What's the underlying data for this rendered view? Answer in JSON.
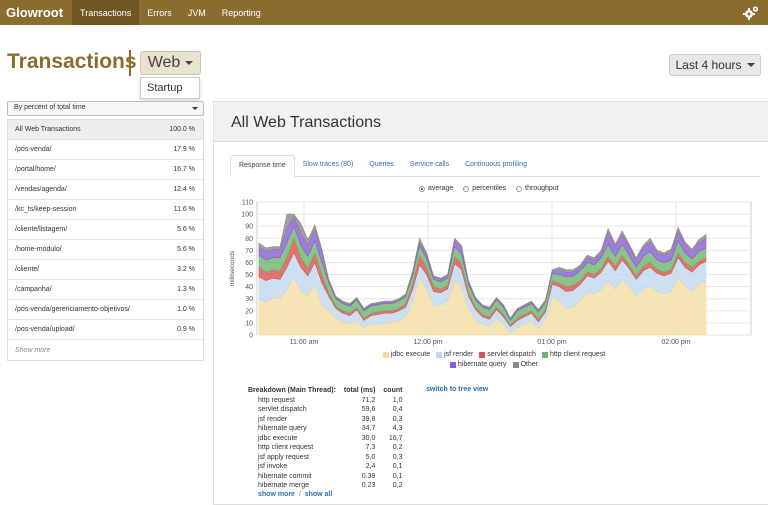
{
  "nav": {
    "brand": "Glowroot",
    "tabs": [
      "Transactions",
      "Errors",
      "JVM",
      "Reporting"
    ],
    "active_tab": "Transactions",
    "gear_icon": "gear-icon"
  },
  "header": {
    "title": "Transactions",
    "transaction_type": "Web",
    "type_menu_items": [
      "Startup"
    ],
    "time_range": "Last 4 hours"
  },
  "sidebar": {
    "sort_select": "By percent of total time",
    "rows": [
      {
        "name": "All Web Transactions",
        "value": "100.0 %"
      },
      {
        "name": "/pos-venda/",
        "value": "17.9 %"
      },
      {
        "name": "/portal/home/",
        "value": "16.7 %"
      },
      {
        "name": "/vendas/agenda/",
        "value": "12.4 %"
      },
      {
        "name": "/kc_ts/keep-session",
        "value": "11.6 %"
      },
      {
        "name": "/cliente/listagem/",
        "value": "5.6 %"
      },
      {
        "name": "/home-modulo/",
        "value": "5.6 %"
      },
      {
        "name": "/cliente/",
        "value": "3.2 %"
      },
      {
        "name": "/campanha/",
        "value": "1.3 %"
      },
      {
        "name": "/pos-venda/gerenciamento-objetivos/",
        "value": "1.0 %"
      },
      {
        "name": "/pos-venda/upload/",
        "value": "0.9 %"
      }
    ],
    "show_more": "Show more"
  },
  "main": {
    "title": "All Web Transactions",
    "tabs": [
      "Response time",
      "Slow traces (80)",
      "Queries",
      "Service calls",
      "Continuous profiling"
    ],
    "active_tab": "Response time",
    "view_options": [
      "average",
      "percentiles",
      "throughput"
    ],
    "selected_view": "average",
    "breakdown": {
      "headers": [
        "Breakdown (Main Thread):",
        "total (ms)",
        "count"
      ],
      "rows": [
        [
          "http request",
          "71,2",
          "1,0"
        ],
        [
          "servlet dispatch",
          "59,6",
          "0,4"
        ],
        [
          "jsf render",
          "39,8",
          "0,3"
        ],
        [
          "hibernate query",
          "34,7",
          "4,3"
        ],
        [
          "jdbc execute",
          "30,0",
          "16,7"
        ],
        [
          "http client request",
          "7,3",
          "0,2"
        ],
        [
          "jsf apply request",
          "5,0",
          "0,3"
        ],
        [
          "jsf invoke",
          "2,4",
          "0,1"
        ],
        [
          "hibernate commit",
          "0.39",
          "0,1"
        ],
        [
          "hibernate merge",
          "0.23",
          "0,2"
        ]
      ],
      "show_more": "show more",
      "separator": "/",
      "show_all": "show all",
      "tree_view": "switch to tree view"
    }
  },
  "chart_data": {
    "type": "area",
    "stacked": true,
    "ylabel": "milliseconds",
    "ylim": [
      0,
      110
    ],
    "yticks": [
      0,
      10,
      20,
      30,
      40,
      50,
      60,
      70,
      80,
      90,
      100,
      110
    ],
    "xtick_labels": [
      "11:00 am",
      "12:00 pm",
      "01:00 pm",
      "02:00 pm"
    ],
    "grid": true,
    "legend_position": "bottom",
    "x": [
      0,
      1,
      2,
      3,
      4,
      5,
      6,
      7,
      8,
      9,
      10,
      11,
      12,
      13,
      14,
      15,
      16,
      17,
      18,
      19,
      20,
      21,
      22,
      23,
      24,
      25,
      26,
      27,
      28,
      29,
      30,
      31,
      32,
      33,
      34,
      35,
      36,
      37,
      38,
      39,
      40,
      41,
      42,
      43,
      44,
      45,
      46,
      47,
      48,
      49,
      50,
      51,
      52,
      53,
      54,
      55,
      56,
      57,
      58,
      59,
      60,
      61,
      62,
      63,
      64
    ],
    "series": [
      {
        "name": "jdbc execute",
        "color": "#f4dca0",
        "values": [
          30,
          27,
          31,
          30,
          38,
          48,
          36,
          33,
          42,
          25,
          20,
          14,
          11,
          9,
          12,
          6,
          9,
          9,
          10,
          11,
          12,
          15,
          28,
          48,
          38,
          24,
          25,
          28,
          45,
          40,
          22,
          13,
          9,
          7,
          14,
          9,
          2,
          6,
          9,
          12,
          5,
          13,
          32,
          28,
          22,
          23,
          29,
          35,
          34,
          38,
          45,
          38,
          46,
          40,
          32,
          38,
          40,
          36,
          34,
          36,
          48,
          41,
          36,
          42,
          45
        ]
      },
      {
        "name": "jsf render",
        "color": "#bfd8ee",
        "values": [
          18,
          18,
          16,
          16,
          18,
          20,
          20,
          16,
          18,
          18,
          12,
          8,
          7,
          7,
          9,
          6,
          7,
          8,
          8,
          7,
          8,
          8,
          10,
          10,
          12,
          12,
          10,
          10,
          14,
          14,
          10,
          8,
          6,
          6,
          7,
          6,
          5,
          6,
          6,
          6,
          6,
          6,
          10,
          12,
          14,
          14,
          13,
          14,
          13,
          14,
          16,
          15,
          16,
          15,
          14,
          15,
          16,
          15,
          15,
          15,
          16,
          15,
          16,
          16,
          16
        ]
      },
      {
        "name": "servlet dispatch",
        "color": "#d9534f",
        "values": [
          8,
          7,
          7,
          7,
          8,
          12,
          8,
          6,
          8,
          7,
          3,
          2,
          2,
          2,
          2,
          2,
          2,
          2,
          2,
          2,
          2,
          3,
          4,
          8,
          6,
          4,
          3,
          3,
          6,
          5,
          3,
          2,
          2,
          2,
          2,
          2,
          1,
          2,
          2,
          2,
          2,
          2,
          3,
          3,
          4,
          4,
          3,
          3,
          3,
          3,
          4,
          4,
          4,
          3,
          3,
          4,
          4,
          3,
          3,
          3,
          4,
          4,
          4,
          3,
          3
        ]
      },
      {
        "name": "http client request",
        "color": "#6db56d",
        "values": [
          10,
          10,
          10,
          11,
          12,
          10,
          10,
          10,
          10,
          10,
          8,
          6,
          6,
          6,
          6,
          6,
          6,
          6,
          6,
          6,
          6,
          6,
          8,
          8,
          7,
          6,
          6,
          6,
          8,
          8,
          7,
          6,
          6,
          6,
          6,
          6,
          4,
          6,
          6,
          6,
          6,
          6,
          6,
          7,
          8,
          8,
          8,
          8,
          8,
          9,
          10,
          8,
          9,
          8,
          7,
          8,
          9,
          8,
          8,
          8,
          10,
          8,
          7,
          8,
          8
        ]
      },
      {
        "name": "hibernate query",
        "color": "#8a5cd6",
        "values": [
          7,
          7,
          7,
          7,
          12,
          8,
          10,
          9,
          10,
          8,
          2,
          1,
          1,
          1,
          1,
          1,
          1,
          1,
          1,
          1,
          1,
          1,
          2,
          3,
          3,
          2,
          2,
          2,
          5,
          5,
          2,
          1,
          1,
          1,
          1,
          1,
          1,
          1,
          1,
          1,
          1,
          1,
          2,
          4,
          4,
          3,
          3,
          4,
          4,
          4,
          10,
          8,
          8,
          7,
          6,
          7,
          8,
          6,
          6,
          7,
          8,
          7,
          6,
          7,
          8
        ]
      },
      {
        "name": "Other",
        "color": "#888888",
        "values": [
          3,
          3,
          2,
          2,
          12,
          2,
          8,
          5,
          3,
          3,
          1,
          1,
          1,
          1,
          1,
          1,
          1,
          1,
          1,
          1,
          1,
          1,
          1,
          3,
          2,
          1,
          1,
          1,
          2,
          2,
          1,
          1,
          1,
          1,
          1,
          1,
          1,
          1,
          1,
          1,
          1,
          1,
          1,
          2,
          2,
          2,
          2,
          2,
          2,
          2,
          3,
          2,
          3,
          2,
          2,
          2,
          3,
          2,
          2,
          2,
          3,
          2,
          2,
          3,
          3
        ]
      }
    ]
  }
}
